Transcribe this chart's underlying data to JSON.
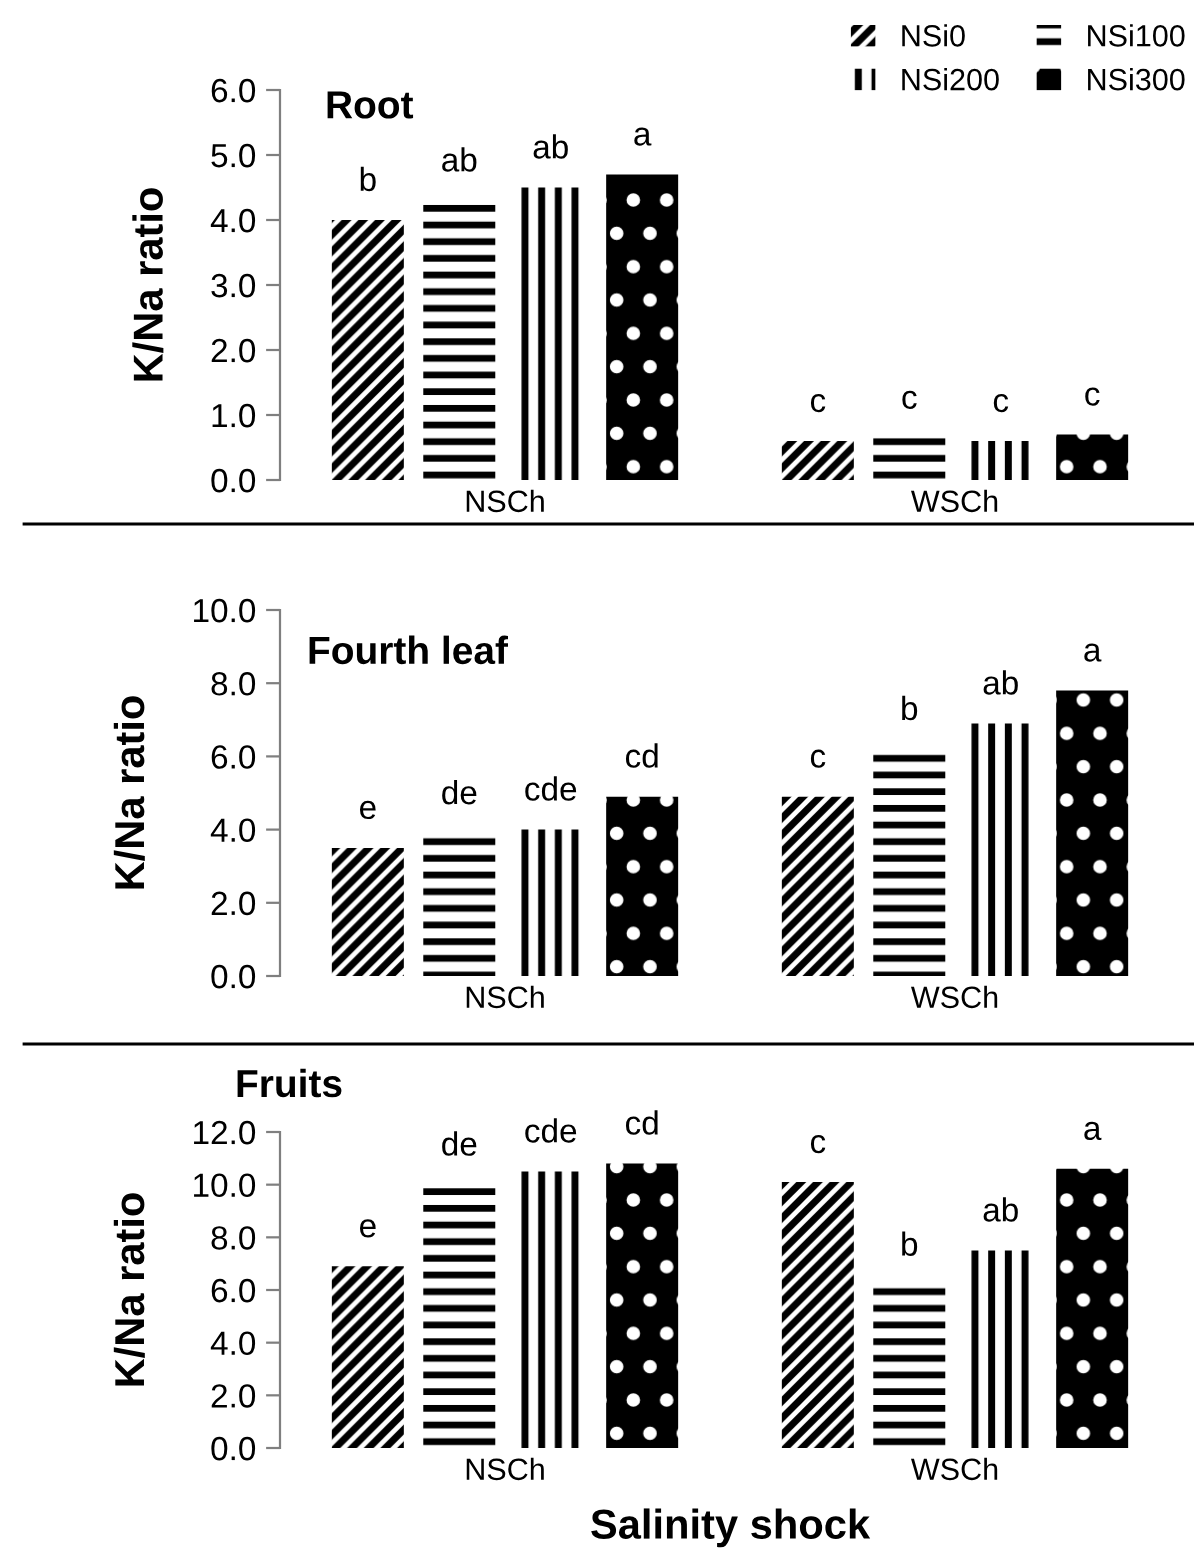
{
  "chart_data": [
    {
      "type": "bar",
      "title": "Root",
      "ylabel": "K/Na ratio",
      "categories": [
        "NSCh",
        "WSCh"
      ],
      "ylim": [
        0,
        6
      ],
      "yticks": [
        {
          "value": 0,
          "label": "0.0"
        },
        {
          "value": 1,
          "label": "1.0"
        },
        {
          "value": 2,
          "label": "2.0"
        },
        {
          "value": 3,
          "label": "3.0"
        },
        {
          "value": 4,
          "label": "4.0"
        },
        {
          "value": 5,
          "label": "5.0"
        },
        {
          "value": 6,
          "label": "6.0"
        }
      ],
      "grid": false,
      "legend": "top right",
      "series": [
        {
          "name": "NSi0",
          "color": "#000000",
          "values": [
            4.0,
            0.6
          ],
          "value_labels": [
            "b",
            "c"
          ]
        },
        {
          "name": "NSi100",
          "color": "#000000",
          "values": [
            4.3,
            0.65
          ],
          "value_labels": [
            "ab",
            "c"
          ]
        },
        {
          "name": "NSi200",
          "color": "#000000",
          "values": [
            4.5,
            0.6
          ],
          "value_labels": [
            "ab",
            "c"
          ]
        },
        {
          "name": "NSi300",
          "color": "#000000",
          "values": [
            4.7,
            0.7
          ],
          "value_labels": [
            "a",
            "c"
          ]
        }
      ]
    },
    {
      "type": "bar",
      "title": "Fourth leaf",
      "ylabel": "K/Na ratio",
      "categories": [
        "NSCh",
        "WSCh"
      ],
      "ylim": [
        0,
        10
      ],
      "yticks": [
        {
          "value": 0,
          "label": "0.0"
        },
        {
          "value": 2,
          "label": "2.0"
        },
        {
          "value": 4,
          "label": "4.0"
        },
        {
          "value": 6,
          "label": "6.0"
        },
        {
          "value": 8,
          "label": "8.0"
        },
        {
          "value": 10,
          "label": "10.0"
        }
      ],
      "grid": false,
      "series": [
        {
          "color": "#000000",
          "values": [
            3.5,
            4.9
          ],
          "value_labels": [
            "e",
            "c"
          ]
        },
        {
          "color": "#000000",
          "values": [
            3.9,
            6.2
          ],
          "value_labels": [
            "de",
            "b"
          ]
        },
        {
          "color": "#000000",
          "values": [
            4.0,
            6.9
          ],
          "value_labels": [
            "cde",
            "ab"
          ]
        },
        {
          "color": "#000000",
          "values": [
            4.9,
            7.8
          ],
          "value_labels": [
            "cd",
            "a"
          ]
        }
      ]
    },
    {
      "type": "bar",
      "title": "Fruits",
      "ylabel": "K/Na ratio",
      "xlabel": "Salinity shock",
      "categories": [
        "NSCh",
        "WSCh"
      ],
      "ylim": [
        0,
        12
      ],
      "yticks": [
        {
          "value": 0,
          "label": "0.0"
        },
        {
          "value": 2,
          "label": "2.0"
        },
        {
          "value": 4,
          "label": "4.0"
        },
        {
          "value": 6,
          "label": "6.0"
        },
        {
          "value": 8,
          "label": "8.0"
        },
        {
          "value": 10,
          "label": "10.0"
        },
        {
          "value": 12,
          "label": "12.0"
        }
      ],
      "grid": false,
      "series": [
        {
          "color": "#000000",
          "values": [
            6.9,
            10.1
          ],
          "value_labels": [
            "e",
            "c"
          ]
        },
        {
          "color": "#000000",
          "values": [
            10.0,
            6.2
          ],
          "value_labels": [
            "de",
            "b"
          ]
        },
        {
          "color": "#000000",
          "values": [
            10.5,
            7.5
          ],
          "value_labels": [
            "cde",
            "ab"
          ]
        },
        {
          "color": "#000000",
          "values": [
            10.8,
            10.6
          ],
          "value_labels": [
            "cd",
            "a"
          ]
        }
      ]
    }
  ]
}
